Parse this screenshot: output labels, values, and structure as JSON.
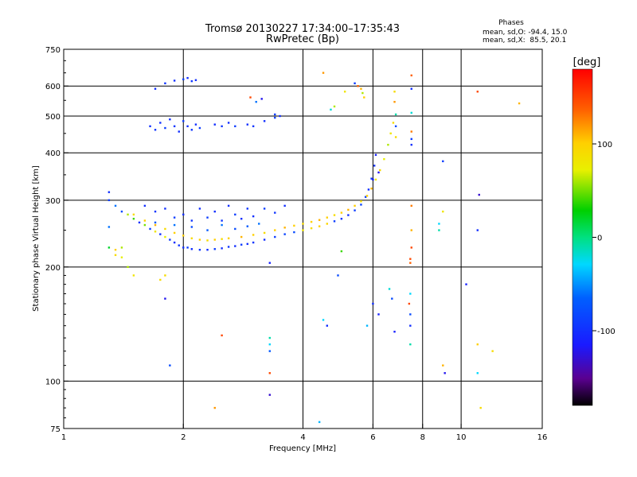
{
  "title_line1": "Tromsø 20130227 17:34:00–17:35:43",
  "title_line2": "RwPretec (Bp)",
  "stats": {
    "heading": "Phases",
    "line1": "mean, sd,O: -94.4, 15.0",
    "line2": "mean, sd,X:  85.5, 20.1"
  },
  "colorbar": {
    "label": "[deg]",
    "ticks": [
      {
        "value": 100,
        "label": "100"
      },
      {
        "value": 0,
        "label": "0"
      },
      {
        "value": -100,
        "label": "-100"
      }
    ],
    "range": [
      -180,
      180
    ]
  },
  "chart_data": {
    "type": "scatter",
    "xlabel": "Frequency [MHz]",
    "ylabel": "Stationary phase Virtual Height [km]",
    "xscale": "log",
    "yscale": "log",
    "xlim": [
      1,
      16
    ],
    "ylim": [
      75,
      750
    ],
    "xticks": [
      {
        "value": 1,
        "label": "1"
      },
      {
        "value": 2,
        "label": "2"
      },
      {
        "value": 4,
        "label": "4"
      },
      {
        "value": 6,
        "label": "6"
      },
      {
        "value": 8,
        "label": "8"
      },
      {
        "value": 10,
        "label": "10"
      },
      {
        "value": 16,
        "label": "16"
      }
    ],
    "xgrid": [
      2,
      4,
      6,
      8,
      10
    ],
    "yticks": [
      {
        "value": 75,
        "label": "75"
      },
      {
        "value": 100,
        "label": "100"
      },
      {
        "value": 200,
        "label": "200"
      },
      {
        "value": 300,
        "label": "300"
      },
      {
        "value": 400,
        "label": "400"
      },
      {
        "value": 500,
        "label": "500"
      },
      {
        "value": 600,
        "label": "600"
      },
      {
        "value": 750,
        "label": "750"
      }
    ],
    "ygrid": [
      100,
      200,
      300,
      400,
      500,
      600
    ],
    "color_variable": "phase [deg]",
    "points": [
      [
        1.3,
        300,
        -90
      ],
      [
        1.35,
        290,
        -60
      ],
      [
        1.4,
        280,
        -80
      ],
      [
        1.45,
        275,
        60
      ],
      [
        1.5,
        268,
        40
      ],
      [
        1.55,
        262,
        -100
      ],
      [
        1.6,
        258,
        50
      ],
      [
        1.65,
        252,
        -90
      ],
      [
        1.7,
        248,
        80
      ],
      [
        1.75,
        244,
        -100
      ],
      [
        1.8,
        240,
        70
      ],
      [
        1.85,
        236,
        -90
      ],
      [
        1.9,
        232,
        -100
      ],
      [
        1.95,
        228,
        -95
      ],
      [
        2.0,
        225,
        -100
      ],
      [
        2.05,
        225,
        -90
      ],
      [
        2.1,
        223,
        -100
      ],
      [
        2.2,
        222,
        -95
      ],
      [
        2.3,
        222,
        -100
      ],
      [
        2.4,
        223,
        -90
      ],
      [
        2.5,
        224,
        -100
      ],
      [
        2.6,
        226,
        -95
      ],
      [
        2.7,
        227,
        -100
      ],
      [
        2.8,
        229,
        -90
      ],
      [
        2.9,
        230,
        -100
      ],
      [
        3.0,
        232,
        -95
      ],
      [
        3.2,
        236,
        -100
      ],
      [
        3.4,
        240,
        -90
      ],
      [
        3.6,
        244,
        -85
      ],
      [
        3.8,
        247,
        -80
      ],
      [
        4.0,
        250,
        80
      ],
      [
        4.2,
        253,
        90
      ],
      [
        4.4,
        256,
        100
      ],
      [
        4.6,
        260,
        95
      ],
      [
        4.8,
        264,
        -90
      ],
      [
        5.0,
        268,
        -95
      ],
      [
        5.2,
        274,
        -100
      ],
      [
        5.4,
        282,
        -90
      ],
      [
        5.6,
        292,
        -85
      ],
      [
        5.75,
        306,
        -90
      ],
      [
        5.85,
        320,
        -100
      ],
      [
        5.95,
        342,
        -95
      ],
      [
        6.05,
        370,
        -100
      ],
      [
        6.1,
        395,
        -110
      ],
      [
        1.5,
        275,
        90
      ],
      [
        1.6,
        265,
        100
      ],
      [
        1.7,
        258,
        110
      ],
      [
        1.8,
        252,
        90
      ],
      [
        1.9,
        246,
        100
      ],
      [
        2.0,
        242,
        100
      ],
      [
        2.1,
        238,
        90
      ],
      [
        2.2,
        236,
        100
      ],
      [
        2.3,
        235,
        90
      ],
      [
        2.4,
        236,
        100
      ],
      [
        2.5,
        237,
        90
      ],
      [
        2.6,
        238,
        100
      ],
      [
        2.8,
        240,
        110
      ],
      [
        3.0,
        243,
        100
      ],
      [
        3.2,
        246,
        90
      ],
      [
        3.4,
        250,
        100
      ],
      [
        3.6,
        254,
        110
      ],
      [
        3.8,
        257,
        100
      ],
      [
        4.0,
        260,
        90
      ],
      [
        4.2,
        263,
        100
      ],
      [
        4.4,
        266,
        110
      ],
      [
        4.6,
        270,
        100
      ],
      [
        4.8,
        274,
        90
      ],
      [
        5.0,
        278,
        100
      ],
      [
        5.2,
        283,
        110
      ],
      [
        5.4,
        290,
        100
      ],
      [
        5.6,
        298,
        90
      ],
      [
        5.8,
        308,
        100
      ],
      [
        5.95,
        322,
        110
      ],
      [
        6.1,
        340,
        80
      ],
      [
        6.25,
        360,
        90
      ],
      [
        6.4,
        385,
        70
      ],
      [
        6.55,
        420,
        60
      ],
      [
        6.65,
        450,
        80
      ],
      [
        6.75,
        480,
        90
      ],
      [
        1.6,
        290,
        -100
      ],
      [
        1.7,
        280,
        -95
      ],
      [
        1.8,
        285,
        -100
      ],
      [
        1.9,
        270,
        -90
      ],
      [
        2.0,
        275,
        -100
      ],
      [
        2.1,
        265,
        -95
      ],
      [
        2.2,
        285,
        -100
      ],
      [
        2.3,
        270,
        -90
      ],
      [
        2.4,
        280,
        -100
      ],
      [
        2.5,
        265,
        -95
      ],
      [
        2.6,
        290,
        -100
      ],
      [
        2.7,
        275,
        -90
      ],
      [
        2.8,
        268,
        -100
      ],
      [
        2.9,
        285,
        -95
      ],
      [
        3.0,
        272,
        -100
      ],
      [
        3.2,
        285,
        -90
      ],
      [
        3.4,
        278,
        -95
      ],
      [
        3.6,
        290,
        -100
      ],
      [
        1.7,
        262,
        -70
      ],
      [
        1.9,
        258,
        -60
      ],
      [
        2.1,
        255,
        -80
      ],
      [
        2.3,
        250,
        -70
      ],
      [
        2.5,
        258,
        -60
      ],
      [
        2.7,
        252,
        -80
      ],
      [
        2.9,
        256,
        -70
      ],
      [
        3.1,
        260,
        -60
      ],
      [
        1.65,
        470,
        -100
      ],
      [
        1.7,
        460,
        -95
      ],
      [
        1.75,
        480,
        -100
      ],
      [
        1.8,
        465,
        -90
      ],
      [
        1.85,
        490,
        -100
      ],
      [
        1.9,
        470,
        -95
      ],
      [
        1.95,
        455,
        -100
      ],
      [
        2.0,
        485,
        -90
      ],
      [
        2.05,
        470,
        -100
      ],
      [
        2.1,
        460,
        -95
      ],
      [
        2.15,
        475,
        -100
      ],
      [
        2.2,
        465,
        -90
      ],
      [
        2.4,
        475,
        -100
      ],
      [
        2.5,
        470,
        -95
      ],
      [
        2.6,
        480,
        -100
      ],
      [
        2.7,
        470,
        -90
      ],
      [
        2.9,
        475,
        -100
      ],
      [
        3.0,
        470,
        -95
      ],
      [
        3.2,
        485,
        -100
      ],
      [
        3.4,
        495,
        -90
      ],
      [
        3.5,
        500,
        -100
      ],
      [
        1.7,
        590,
        -100
      ],
      [
        1.8,
        610,
        -95
      ],
      [
        1.9,
        620,
        -100
      ],
      [
        2.0,
        625,
        -90
      ],
      [
        2.05,
        630,
        -100
      ],
      [
        2.1,
        618,
        -95
      ],
      [
        2.15,
        622,
        -100
      ],
      [
        2.95,
        560,
        150
      ],
      [
        3.05,
        545,
        -60
      ],
      [
        3.15,
        555,
        -120
      ],
      [
        3.4,
        505,
        -90
      ],
      [
        4.5,
        650,
        120
      ],
      [
        4.7,
        520,
        -20
      ],
      [
        4.8,
        530,
        60
      ],
      [
        5.1,
        580,
        80
      ],
      [
        5.4,
        610,
        -90
      ],
      [
        5.5,
        600,
        140
      ],
      [
        5.6,
        590,
        110
      ],
      [
        5.65,
        575,
        60
      ],
      [
        5.7,
        560,
        100
      ],
      [
        6.0,
        340,
        -110
      ],
      [
        6.2,
        355,
        -120
      ],
      [
        6.8,
        580,
        90
      ],
      [
        6.8,
        545,
        120
      ],
      [
        6.85,
        505,
        -10
      ],
      [
        6.85,
        470,
        -80
      ],
      [
        6.85,
        440,
        90
      ],
      [
        7.5,
        640,
        140
      ],
      [
        7.5,
        590,
        -100
      ],
      [
        7.5,
        510,
        -20
      ],
      [
        7.5,
        455,
        130
      ],
      [
        7.5,
        435,
        -90
      ],
      [
        7.5,
        420,
        -100
      ],
      [
        7.5,
        290,
        130
      ],
      [
        7.5,
        250,
        110
      ],
      [
        7.5,
        225,
        150
      ],
      [
        7.45,
        210,
        150
      ],
      [
        7.45,
        205,
        140
      ],
      [
        7.45,
        170,
        -30
      ],
      [
        7.4,
        160,
        150
      ],
      [
        7.45,
        150,
        -80
      ],
      [
        7.45,
        140,
        -100
      ],
      [
        7.45,
        125,
        -10
      ],
      [
        6.7,
        165,
        -80
      ],
      [
        6.6,
        175,
        -20
      ],
      [
        6.8,
        135,
        -110
      ],
      [
        9.0,
        380,
        -90
      ],
      [
        9.0,
        280,
        80
      ],
      [
        8.8,
        260,
        -30
      ],
      [
        8.8,
        250,
        -10
      ],
      [
        9.0,
        110,
        110
      ],
      [
        9.1,
        105,
        -120
      ],
      [
        10.3,
        180,
        -110
      ],
      [
        11.0,
        580,
        150
      ],
      [
        11.1,
        310,
        -130
      ],
      [
        11.0,
        250,
        -100
      ],
      [
        11.0,
        125,
        100
      ],
      [
        11.0,
        105,
        -30
      ],
      [
        11.2,
        85,
        90
      ],
      [
        12.0,
        120,
        90
      ],
      [
        14.0,
        540,
        110
      ],
      [
        5.0,
        220,
        40
      ],
      [
        4.9,
        190,
        -80
      ],
      [
        4.5,
        145,
        -30
      ],
      [
        4.6,
        140,
        -100
      ],
      [
        4.4,
        78,
        -40
      ],
      [
        3.3,
        205,
        -110
      ],
      [
        3.3,
        130,
        -10
      ],
      [
        3.3,
        125,
        -30
      ],
      [
        3.3,
        120,
        -70
      ],
      [
        3.3,
        105,
        150
      ],
      [
        3.3,
        92,
        -130
      ],
      [
        2.5,
        132,
        150
      ],
      [
        2.4,
        85,
        120
      ],
      [
        1.85,
        110,
        -80
      ],
      [
        1.8,
        165,
        -120
      ],
      [
        1.75,
        185,
        90
      ],
      [
        1.8,
        190,
        90
      ],
      [
        1.5,
        190,
        80
      ],
      [
        1.45,
        200,
        60
      ],
      [
        1.4,
        212,
        70
      ],
      [
        1.35,
        215,
        90
      ],
      [
        1.35,
        222,
        100
      ],
      [
        1.4,
        225,
        60
      ],
      [
        1.3,
        225,
        20
      ],
      [
        1.3,
        255,
        -60
      ],
      [
        1.3,
        315,
        -100
      ],
      [
        5.8,
        140,
        -40
      ],
      [
        6.2,
        150,
        -110
      ],
      [
        6.0,
        160,
        -100
      ]
    ]
  }
}
